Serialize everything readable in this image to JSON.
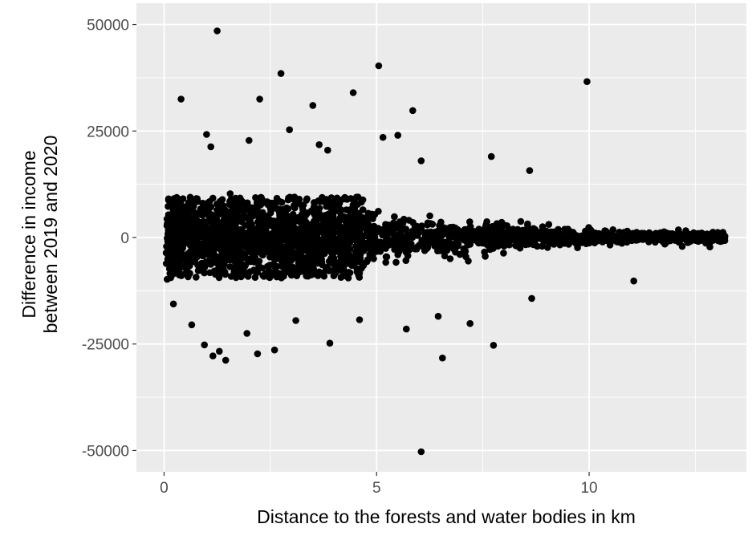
{
  "chart_data": {
    "type": "scatter",
    "title": "",
    "xlabel": "Distance to the forests and water bodies in km",
    "ylabel_lines": [
      "Difference in income",
      "between 2019 and 2020"
    ],
    "xlim": [
      -0.65,
      13.7
    ],
    "ylim": [
      -55000,
      55000
    ],
    "x_ticks": [
      0,
      5,
      10
    ],
    "x_tick_labels": [
      "0",
      "5",
      "10"
    ],
    "y_ticks": [
      -50000,
      -25000,
      0,
      25000,
      50000
    ],
    "y_tick_labels": [
      "-50000",
      "-25000",
      "0",
      "25000",
      "50000"
    ],
    "grid": true,
    "colors": {
      "panel": "#ebebeb",
      "grid": "#ffffff",
      "point": "#000000"
    },
    "series": [
      {
        "points_outliers": [
          [
            1.25,
            48500
          ],
          [
            5.05,
            40300
          ],
          [
            2.75,
            38500
          ],
          [
            9.95,
            36600
          ],
          [
            4.45,
            34000
          ],
          [
            0.4,
            32500
          ],
          [
            2.25,
            32500
          ],
          [
            3.5,
            31000
          ],
          [
            5.85,
            29800
          ],
          [
            2.95,
            25300
          ],
          [
            1.0,
            24200
          ],
          [
            5.5,
            24000
          ],
          [
            5.15,
            23500
          ],
          [
            2.0,
            22800
          ],
          [
            3.65,
            21800
          ],
          [
            1.1,
            21300
          ],
          [
            3.85,
            20500
          ],
          [
            6.05,
            18000
          ],
          [
            7.7,
            19000
          ],
          [
            8.6,
            15700
          ],
          [
            11.05,
            -10200
          ],
          [
            0.22,
            -15600
          ],
          [
            0.65,
            -20500
          ],
          [
            0.95,
            -25200
          ],
          [
            1.15,
            -27800
          ],
          [
            1.45,
            -28800
          ],
          [
            1.3,
            -26700
          ],
          [
            2.2,
            -27300
          ],
          [
            2.6,
            -26400
          ],
          [
            3.9,
            -24800
          ],
          [
            4.6,
            -19300
          ],
          [
            5.7,
            -21500
          ],
          [
            6.55,
            -28300
          ],
          [
            6.45,
            -18500
          ],
          [
            7.75,
            -25300
          ],
          [
            7.2,
            -20200
          ],
          [
            6.05,
            -50300
          ],
          [
            8.65,
            -14300
          ],
          [
            1.95,
            -22500
          ],
          [
            3.1,
            -19500
          ]
        ]
      }
    ]
  }
}
